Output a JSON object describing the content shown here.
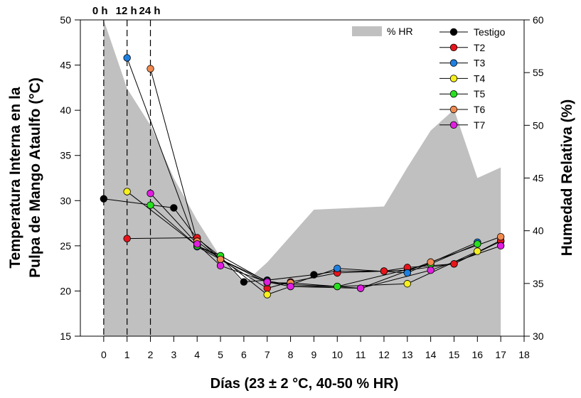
{
  "chart_data": {
    "type": "line",
    "xlabel": "Días (23 ± 2 °C, 40-50 % HR)",
    "ylabel_line1": "Temperatura Interna en la",
    "ylabel_line2": "Pulpa de Mango Ataulfo (°C)",
    "y2label": "Humedad Relativa (%)",
    "xlim": [
      -1,
      18
    ],
    "ylim": [
      15,
      50
    ],
    "y2lim": [
      30,
      60
    ],
    "x_ticks": [
      0,
      1,
      2,
      3,
      4,
      5,
      6,
      7,
      8,
      9,
      10,
      11,
      12,
      13,
      14,
      15,
      16,
      17,
      18
    ],
    "y_ticks": [
      15,
      20,
      25,
      30,
      35,
      40,
      45,
      50
    ],
    "y2_ticks": [
      30,
      35,
      40,
      45,
      50,
      55,
      60
    ],
    "time_markers": [
      {
        "x": 0,
        "label": "0 h"
      },
      {
        "x": 1,
        "label": "12 h"
      },
      {
        "x": 2,
        "label": "24 h"
      }
    ],
    "legend_placement": "top-right",
    "hr_area": {
      "name": "% HR",
      "color": "#c0c0c0",
      "x": [
        0,
        1,
        2,
        3,
        4,
        5,
        6,
        7,
        8,
        9,
        10,
        11,
        12,
        13,
        14,
        15,
        16,
        17
      ],
      "values": [
        60,
        53.5,
        50,
        45,
        41,
        37.5,
        35,
        37,
        39.5,
        42,
        42.1,
        42.2,
        42.3,
        46,
        49.5,
        51.5,
        45,
        46
      ]
    },
    "series": [
      {
        "name": "Testigo",
        "color": "#000000",
        "x": [
          0,
          3,
          4,
          5,
          6,
          7,
          9,
          10,
          12,
          13,
          15,
          17
        ],
        "values": [
          30.2,
          29.2,
          25.8,
          23.8,
          21.0,
          21.2,
          21.8,
          22.2,
          22.2,
          22.3,
          23.0,
          25.5
        ]
      },
      {
        "name": "T2",
        "color": "#e8141b",
        "x": [
          1,
          4,
          5,
          7,
          8,
          10,
          12,
          13,
          15,
          17
        ],
        "values": [
          25.8,
          25.9,
          23.5,
          20.3,
          21.0,
          22.0,
          22.2,
          22.6,
          23.0,
          25.6
        ]
      },
      {
        "name": "T3",
        "color": "#1e7fe0",
        "x": [
          1,
          4,
          5,
          7,
          8,
          10,
          13,
          16
        ],
        "values": [
          45.8,
          24.9,
          23.5,
          21.1,
          20.7,
          22.5,
          22.0,
          25.4
        ]
      },
      {
        "name": "T4",
        "color": "#f7f01c",
        "x": [
          1,
          4,
          5,
          7,
          8,
          10,
          13,
          16
        ],
        "values": [
          31.0,
          25.0,
          23.7,
          19.6,
          20.5,
          20.5,
          20.8,
          24.4
        ]
      },
      {
        "name": "T5",
        "color": "#26e01e",
        "x": [
          2,
          4,
          5,
          7,
          8,
          10,
          14,
          16
        ],
        "values": [
          29.5,
          25.0,
          23.9,
          21.0,
          20.7,
          20.5,
          23.0,
          25.2
        ]
      },
      {
        "name": "T6",
        "color": "#f08a50",
        "x": [
          2,
          4,
          5,
          7,
          8,
          11,
          14,
          17
        ],
        "values": [
          44.6,
          25.5,
          23.5,
          20.9,
          20.9,
          20.3,
          23.2,
          26.0
        ]
      },
      {
        "name": "T7",
        "color": "#e01ee0",
        "x": [
          2,
          4,
          5,
          7,
          8,
          11,
          14,
          17
        ],
        "values": [
          30.8,
          25.2,
          22.8,
          21.0,
          20.5,
          20.3,
          22.3,
          25.0
        ]
      }
    ]
  }
}
